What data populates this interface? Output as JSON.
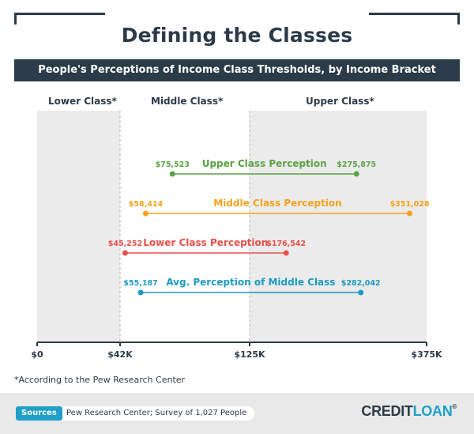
{
  "title": "Defining the Classes",
  "subtitle": "People's Perceptions of Income Class Thresholds, by Income Bracket",
  "bands": [
    {
      "label": "Lower Class*",
      "from": 0,
      "to": 42000
    },
    {
      "label": "Middle Class*",
      "from": 42000,
      "to": 125000
    },
    {
      "label": "Upper Class*",
      "from": 125000,
      "to": 375000
    }
  ],
  "chart_data": {
    "type": "range-bar",
    "x_ticks": [
      {
        "value": 0,
        "label": "$0"
      },
      {
        "value": 42000,
        "label": "$42K"
      },
      {
        "value": 125000,
        "label": "$125K"
      },
      {
        "value": 375000,
        "label": "$375K"
      }
    ],
    "xlim": [
      0,
      375000
    ],
    "series": [
      {
        "name": "Upper Class Perception",
        "low": 75523,
        "high": 275875,
        "low_label": "$75,523",
        "high_label": "$275,875",
        "color": "#5aa345"
      },
      {
        "name": "Middle Class Perception",
        "low": 58414,
        "high": 351028,
        "low_label": "$58,414",
        "high_label": "$351,028",
        "color": "#f6a21d"
      },
      {
        "name": "Lower Class Perception",
        "low": 45252,
        "high": 176542,
        "low_label": "$45,252",
        "high_label": "$176,542",
        "color": "#e8504a"
      },
      {
        "name": "Avg. Perception of Middle Class",
        "low": 55187,
        "high": 282042,
        "low_label": "$55,187",
        "high_label": "$282,042",
        "color": "#1b9ac1"
      }
    ],
    "colors": {
      "band_shade": "#ebebeb",
      "axis": "#2c3b49",
      "divider": "#b5b5b5"
    }
  },
  "footnote": "*According to the Pew Research Center",
  "footer": {
    "sources_label": "Sources",
    "sources_text": "Pew Research Center; Survey of 1,027 People",
    "brand_part1": "CREDIT",
    "brand_part2": "LOAN",
    "brand_mark": "®"
  }
}
